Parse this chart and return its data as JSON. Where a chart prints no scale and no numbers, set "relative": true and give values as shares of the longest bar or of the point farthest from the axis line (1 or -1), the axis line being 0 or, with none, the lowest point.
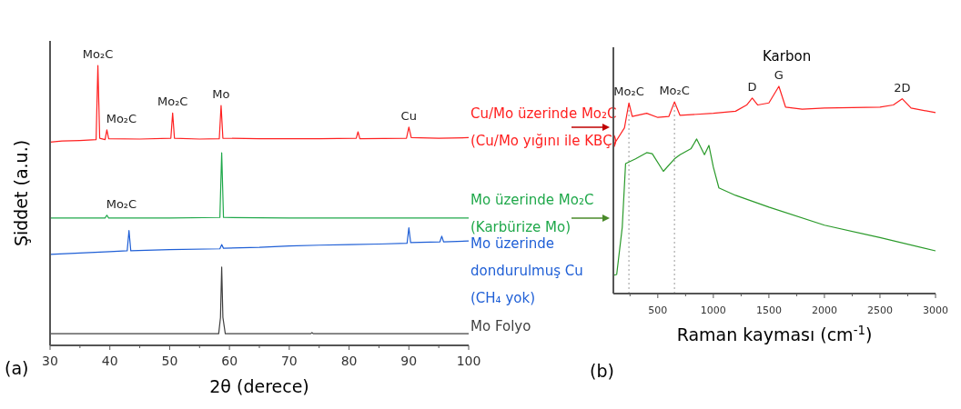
{
  "chart_data": [
    {
      "type": "line",
      "relative": true,
      "xlabel": "2θ (derece)",
      "ylabel": "Şiddet (a.u.)",
      "xlim": [
        30,
        100
      ],
      "xticks": [
        30,
        {
          "value": 35,
          "label": null
        },
        40,
        {
          "value": 45,
          "label": null
        },
        50,
        {
          "value": 55,
          "label": null
        },
        60,
        {
          "value": 65,
          "label": null
        },
        70,
        {
          "value": 75,
          "label": null
        },
        80,
        {
          "value": 85,
          "label": null
        },
        90,
        {
          "value": 95,
          "label": null
        },
        100
      ],
      "tick_labels": "x",
      "legend": false,
      "series": [
        {
          "name": "Cu/Mo üzerinde Mo₂C\n(Cu/Mo yığını ile KBÇ)",
          "color": "#ff2020",
          "x": [
            30,
            32,
            35,
            37.7,
            38.0,
            38.3,
            39.2,
            39.5,
            39.8,
            45,
            50.2,
            50.5,
            50.8,
            55,
            58.3,
            58.6,
            58.9,
            65,
            75,
            81.2,
            81.5,
            81.8,
            89.6,
            90,
            90.4,
            95,
            100
          ],
          "values": [
            0.726,
            0.73,
            0.732,
            0.735,
            1.0,
            0.74,
            0.735,
            0.77,
            0.738,
            0.737,
            0.74,
            0.83,
            0.74,
            0.737,
            0.738,
            0.857,
            0.74,
            0.738,
            0.738,
            0.74,
            0.763,
            0.738,
            0.74,
            0.78,
            0.742,
            0.74,
            0.742
          ]
        },
        {
          "name": "Mo üzerinde Mo₂C\n(Karbürize Mo)",
          "color": "#1fa84a",
          "x": [
            30,
            39.2,
            39.5,
            39.8,
            50,
            58.4,
            58.7,
            59.0,
            70,
            100
          ],
          "values": [
            0.455,
            0.455,
            0.465,
            0.455,
            0.455,
            0.457,
            0.688,
            0.457,
            0.455,
            0.455
          ]
        },
        {
          "name": "Mo üzerinde\ndondurulmuş Cu\n(CH₄ yok)",
          "color": "#1f5fd6",
          "x": [
            30,
            35,
            40,
            42.9,
            43.2,
            43.5,
            50,
            58.4,
            58.7,
            59,
            65,
            70,
            75,
            80,
            85,
            89.7,
            90,
            90.3,
            95.2,
            95.5,
            95.8,
            100
          ],
          "values": [
            0.325,
            0.33,
            0.335,
            0.338,
            0.41,
            0.338,
            0.342,
            0.345,
            0.36,
            0.347,
            0.35,
            0.355,
            0.358,
            0.36,
            0.362,
            0.365,
            0.42,
            0.367,
            0.37,
            0.39,
            0.37,
            0.373
          ]
        },
        {
          "name": "Mo Folyo",
          "color": "#404040",
          "x": [
            30,
            58.2,
            58.5,
            58.7,
            58.9,
            59.3,
            73.6,
            73.8,
            74,
            100
          ],
          "values": [
            0.042,
            0.042,
            0.1,
            0.28,
            0.1,
            0.042,
            0.042,
            0.046,
            0.042,
            0.042
          ]
        }
      ],
      "annotations": [
        "(a)",
        {
          "text": "Mo₂C",
          "x": 38.0,
          "y": 1.0
        },
        {
          "text": "Mo₂C",
          "x": 39.5,
          "y": 0.77
        },
        {
          "text": "Mo₂C",
          "x": 50.5,
          "y": 0.83
        },
        {
          "text": "Mo",
          "x": 58.6,
          "y": 0.857
        },
        {
          "text": "Cu",
          "x": 90,
          "y": 0.78
        },
        {
          "text": "Mo₂C",
          "x": 39.5,
          "y": 0.465
        }
      ]
    },
    {
      "type": "line",
      "relative": true,
      "xlabel": "Raman kayması (cm$^{-1}$)",
      "xlim": [
        100,
        3000
      ],
      "xticks": [
        {
          "value": 250,
          "label": null
        },
        500,
        {
          "value": 750,
          "label": null
        },
        1000,
        {
          "value": 1250,
          "label": null
        },
        1500,
        {
          "value": 1750,
          "label": null
        },
        2000,
        {
          "value": 2250,
          "label": null
        },
        2500,
        {
          "value": 2750,
          "label": null
        },
        3000
      ],
      "tick_labels": "x",
      "legend": false,
      "series": [
        {
          "color": "#ff2020",
          "x": [
            100,
            200,
            240,
            270,
            400,
            500,
            600,
            650,
            700,
            1000,
            1200,
            1300,
            1350,
            1400,
            1500,
            1590,
            1650,
            1800,
            2000,
            2500,
            2620,
            2700,
            2780,
            3000
          ],
          "values": [
            0.715,
            0.8,
            0.92,
            0.855,
            0.87,
            0.85,
            0.855,
            0.925,
            0.86,
            0.87,
            0.88,
            0.91,
            0.943,
            0.91,
            0.92,
            1.0,
            0.9,
            0.89,
            0.895,
            0.9,
            0.91,
            0.94,
            0.895,
            0.873
          ]
        },
        {
          "color": "#2a9a2a",
          "x": [
            100,
            130,
            180,
            210,
            240,
            300,
            400,
            450,
            550,
            650,
            700,
            800,
            850,
            920,
            960,
            1000,
            1050,
            1200,
            1500,
            2000,
            2500,
            3000
          ],
          "values": [
            0.088,
            0.092,
            0.32,
            0.627,
            0.635,
            0.65,
            0.68,
            0.675,
            0.59,
            0.65,
            0.67,
            0.7,
            0.746,
            0.67,
            0.715,
            0.61,
            0.51,
            0.474,
            0.417,
            0.33,
            0.27,
            0.206
          ]
        }
      ],
      "ref_lines": [
        {
          "axis": "x",
          "value": 240,
          "color": "#999999",
          "line_style": "dotted"
        },
        {
          "axis": "x",
          "value": 650,
          "color": "#999999",
          "line_style": "dotted"
        }
      ],
      "annotations": [
        "(b)",
        "Karbon",
        {
          "text": "Mo₂C",
          "x": 240,
          "y": 0.92
        },
        {
          "text": "Mo₂C",
          "x": 650,
          "y": 0.925
        },
        {
          "text": "D",
          "x": 1350,
          "y": 0.943
        },
        {
          "text": "G",
          "x": 1590,
          "y": 1.0
        },
        {
          "text": "2D",
          "x": 2700,
          "y": 0.94
        }
      ]
    }
  ]
}
